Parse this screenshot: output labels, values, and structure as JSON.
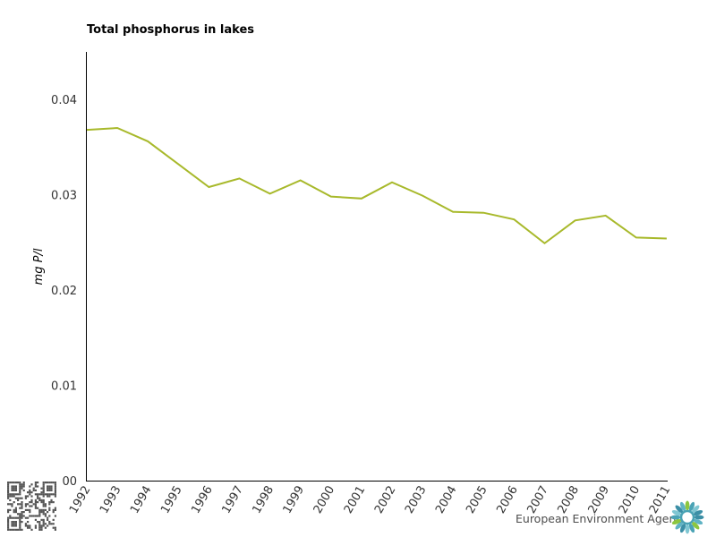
{
  "chart_data": {
    "type": "line",
    "title": "Total phosphorus in lakes",
    "ylabel": "mg P/l",
    "xlabel": "",
    "ylim": [
      0,
      0.045
    ],
    "y_ticks": [
      "00",
      "0.01",
      "0.02",
      "0.03",
      "0.04"
    ],
    "y_tick_values": [
      0,
      0.01,
      0.02,
      0.03,
      0.04
    ],
    "x": [
      "1992",
      "1993",
      "1994",
      "1995",
      "1996",
      "1997",
      "1998",
      "1999",
      "2000",
      "2001",
      "2002",
      "2003",
      "2004",
      "2005",
      "2006",
      "2007",
      "2008",
      "2009",
      "2010",
      "2011"
    ],
    "series": [
      {
        "values": [
          0.0368,
          0.037,
          0.0356,
          0.0332,
          0.0308,
          0.0317,
          0.0301,
          0.0315,
          0.0298,
          0.0296,
          0.0313,
          0.0299,
          0.0282,
          0.0281,
          0.0274,
          0.0249,
          0.0273,
          0.0278,
          0.0255,
          0.0254
        ],
        "color": "#a8b92b"
      }
    ],
    "grid": false,
    "legend": "none"
  },
  "branding": {
    "agency_name": "European Environment Agency",
    "logo_icon": "eea-sun-logo-icon",
    "qr_icon": "qr-code-icon",
    "accent_color": "#4aa3b5"
  }
}
